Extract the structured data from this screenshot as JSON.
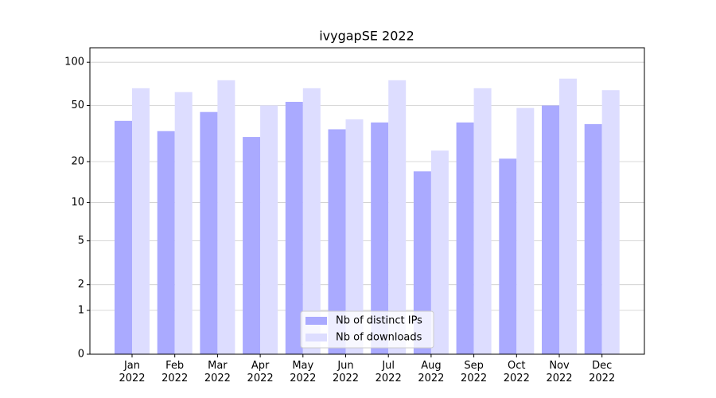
{
  "chart_data": {
    "type": "bar",
    "title": "ivygapSE 2022",
    "categories": [
      "Jan\n2022",
      "Feb\n2022",
      "Mar\n2022",
      "Apr\n2022",
      "May\n2022",
      "Jun\n2022",
      "Jul\n2022",
      "Aug\n2022",
      "Sep\n2022",
      "Oct\n2022",
      "Nov\n2022",
      "Dec\n2022"
    ],
    "series": [
      {
        "name": "Nb of distinct IPs",
        "color": "#aaaaff",
        "values": [
          39,
          33,
          45,
          30,
          53,
          34,
          38,
          17,
          38,
          21,
          50,
          37
        ]
      },
      {
        "name": "Nb of downloads",
        "color": "#ddddff",
        "values": [
          66,
          62,
          75,
          50,
          66,
          40,
          75,
          24,
          66,
          48,
          77,
          64
        ]
      }
    ],
    "y_scale": "log1p",
    "ylim": [
      0,
      126
    ],
    "yticks": [
      0,
      1,
      2,
      5,
      10,
      20,
      50,
      100
    ],
    "grid": true,
    "legend": "lower center"
  }
}
